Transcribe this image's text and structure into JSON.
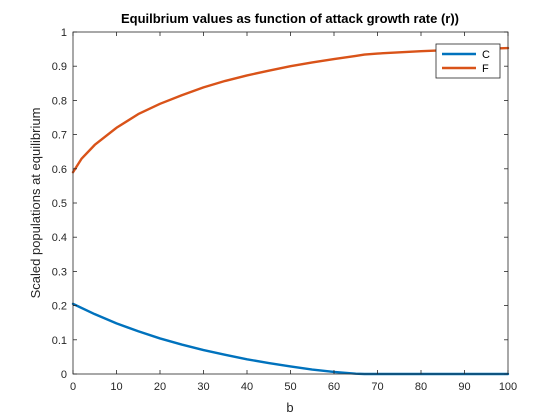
{
  "chart_data": {
    "type": "line",
    "title": "Equilbrium values as function of attack growth rate (r))",
    "xlabel": "b",
    "ylabel": "Scaled populations at equilibrium",
    "xlim": [
      0,
      100
    ],
    "ylim": [
      0,
      1
    ],
    "xticks": [
      0,
      10,
      20,
      30,
      40,
      50,
      60,
      70,
      80,
      90,
      100
    ],
    "yticks": [
      0,
      0.1,
      0.2,
      0.3,
      0.4,
      0.5,
      0.6,
      0.7,
      0.8,
      0.9,
      1
    ],
    "xtick_labels": [
      "0",
      "10",
      "20",
      "30",
      "40",
      "50",
      "60",
      "70",
      "80",
      "90",
      "100"
    ],
    "ytick_labels": [
      "0",
      "0.1",
      "0.2",
      "0.3",
      "0.4",
      "0.5",
      "0.6",
      "0.7",
      "0.8",
      "0.9",
      "1"
    ],
    "grid": false,
    "legend_position": "top-right",
    "series": [
      {
        "name": "C",
        "color": "#0072BD",
        "x": [
          0,
          5,
          10,
          15,
          20,
          25,
          30,
          35,
          40,
          45,
          50,
          55,
          60,
          65,
          67,
          70,
          80,
          90,
          100
        ],
        "y": [
          0.205,
          0.175,
          0.148,
          0.125,
          0.104,
          0.086,
          0.07,
          0.056,
          0.043,
          0.032,
          0.022,
          0.013,
          0.006,
          0.001,
          0.0,
          0.0,
          0.0,
          0.0,
          0.0
        ]
      },
      {
        "name": "F",
        "color": "#D95319",
        "x": [
          0,
          2,
          5,
          10,
          15,
          20,
          25,
          30,
          35,
          40,
          45,
          50,
          55,
          60,
          65,
          67,
          70,
          80,
          90,
          100
        ],
        "y": [
          0.59,
          0.63,
          0.67,
          0.72,
          0.76,
          0.79,
          0.815,
          0.838,
          0.857,
          0.873,
          0.887,
          0.9,
          0.911,
          0.921,
          0.93,
          0.934,
          0.937,
          0.944,
          0.949,
          0.953
        ]
      }
    ]
  }
}
